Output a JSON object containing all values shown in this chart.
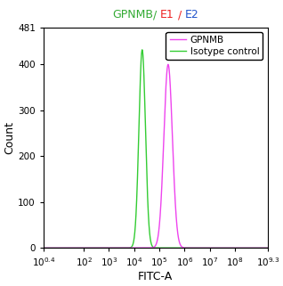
{
  "xlabel": "FITC-A",
  "ylabel": "Count",
  "xlim_log": [
    0.4,
    9.3
  ],
  "ylim": [
    0,
    481
  ],
  "yticks": [
    0,
    100,
    200,
    300,
    400,
    481
  ],
  "gpnmb_color": "#ee44ee",
  "isotype_color": "#33cc33",
  "gpnmb_peak_log": 5.35,
  "gpnmb_peak_height": 400,
  "gpnmb_sigma_log": 0.17,
  "isotype_peak_log": 4.32,
  "isotype_peak_height": 432,
  "isotype_sigma_log": 0.13,
  "legend_labels": [
    "GPNMB",
    "Isotype control"
  ],
  "bg_color": "#ffffff",
  "axes_label_fontsize": 9,
  "tick_fontsize": 7.5,
  "title_fontsize": 9,
  "legend_fontsize": 7.5,
  "title_gpnmb_color": "#33aa33",
  "title_e1_color": "#ee2222",
  "title_e2_color": "#2255cc",
  "title_text": "GPNMB/ E1 / E2",
  "title_pieces": [
    [
      "GPNMB",
      "#33aa33"
    ],
    [
      "/ ",
      "#33aa33"
    ],
    [
      "E1",
      "#ee2222"
    ],
    [
      " / ",
      "#ee2222"
    ],
    [
      "E2",
      "#2255cc"
    ]
  ]
}
